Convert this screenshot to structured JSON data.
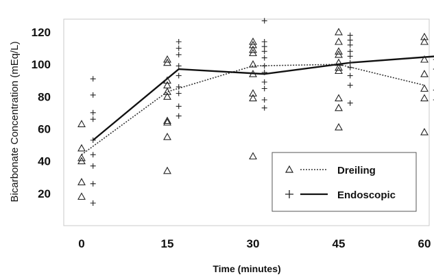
{
  "chart_data": {
    "type": "scatter",
    "title": "",
    "xlabel": "Time (minutes)",
    "ylabel": "Bicarbonate Concentration (mEq/L)",
    "x_ticks": [
      0,
      15,
      30,
      45,
      60
    ],
    "y_ticks": [
      20,
      40,
      60,
      80,
      100,
      120
    ],
    "xlim": [
      -4,
      62
    ],
    "ylim": [
      0,
      128
    ],
    "grid": false,
    "legend_position": "bottom-right",
    "series": [
      {
        "name": "Dreiling",
        "marker": "triangle",
        "line_style": "dotted",
        "points": [
          [
            0,
            63
          ],
          [
            0,
            48
          ],
          [
            0,
            42
          ],
          [
            0,
            40
          ],
          [
            0,
            27
          ],
          [
            0,
            18
          ],
          [
            15,
            103
          ],
          [
            15,
            101
          ],
          [
            15,
            90
          ],
          [
            15,
            87
          ],
          [
            15,
            83
          ],
          [
            15,
            80
          ],
          [
            15,
            65
          ],
          [
            15,
            64
          ],
          [
            15,
            55
          ],
          [
            15,
            34
          ],
          [
            30,
            114
          ],
          [
            30,
            112
          ],
          [
            30,
            109
          ],
          [
            30,
            107
          ],
          [
            30,
            100
          ],
          [
            30,
            94
          ],
          [
            30,
            82
          ],
          [
            30,
            79
          ],
          [
            30,
            43
          ],
          [
            45,
            120
          ],
          [
            45,
            114
          ],
          [
            45,
            108
          ],
          [
            45,
            106
          ],
          [
            45,
            101
          ],
          [
            45,
            98
          ],
          [
            45,
            96
          ],
          [
            45,
            79
          ],
          [
            45,
            73
          ],
          [
            45,
            61
          ],
          [
            60,
            117
          ],
          [
            60,
            114
          ],
          [
            60,
            103
          ],
          [
            60,
            94
          ],
          [
            60,
            85
          ],
          [
            60,
            79
          ],
          [
            60,
            58
          ]
        ],
        "line": [
          [
            0,
            44
          ],
          [
            15,
            83
          ],
          [
            30,
            99
          ],
          [
            45,
            100
          ],
          [
            60,
            87
          ]
        ]
      },
      {
        "name": "Endoscopic",
        "marker": "cross",
        "line_style": "solid",
        "points": [
          [
            2,
            91
          ],
          [
            2,
            81
          ],
          [
            2,
            70
          ],
          [
            2,
            66
          ],
          [
            2,
            53
          ],
          [
            2,
            44
          ],
          [
            2,
            37
          ],
          [
            2,
            26
          ],
          [
            2,
            14
          ],
          [
            17,
            114
          ],
          [
            17,
            110
          ],
          [
            17,
            106
          ],
          [
            17,
            99
          ],
          [
            17,
            93
          ],
          [
            17,
            86
          ],
          [
            17,
            82
          ],
          [
            17,
            74
          ],
          [
            17,
            68
          ],
          [
            32,
            127
          ],
          [
            32,
            114
          ],
          [
            32,
            111
          ],
          [
            32,
            108
          ],
          [
            32,
            104
          ],
          [
            32,
            99
          ],
          [
            32,
            95
          ],
          [
            32,
            89
          ],
          [
            32,
            85
          ],
          [
            32,
            78
          ],
          [
            32,
            73
          ],
          [
            47,
            118
          ],
          [
            47,
            115
          ],
          [
            47,
            112
          ],
          [
            47,
            108
          ],
          [
            47,
            105
          ],
          [
            47,
            101
          ],
          [
            47,
            98
          ],
          [
            47,
            93
          ],
          [
            47,
            87
          ],
          [
            47,
            76
          ],
          [
            62,
            103
          ],
          [
            62,
            97
          ],
          [
            62,
            84
          ],
          [
            62,
            78
          ]
        ],
        "line": [
          [
            2,
            53
          ],
          [
            17,
            97
          ],
          [
            32,
            94
          ],
          [
            47,
            101
          ],
          [
            62,
            105
          ]
        ]
      }
    ]
  }
}
